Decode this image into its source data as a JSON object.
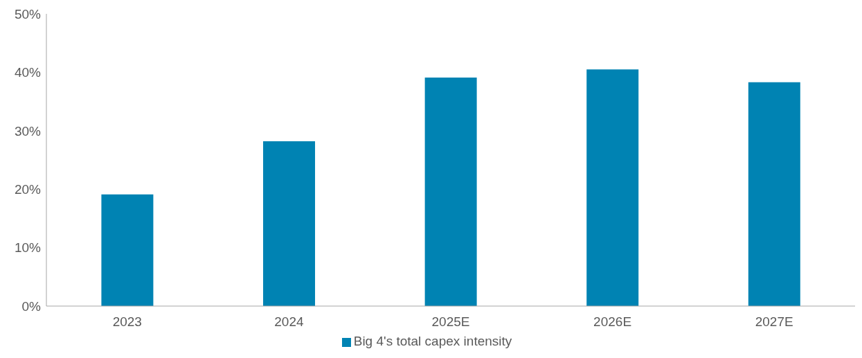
{
  "chart_data": {
    "type": "bar",
    "categories": [
      "2023",
      "2024",
      "2025E",
      "2026E",
      "2027E"
    ],
    "series": [
      {
        "name": "Big 4's total capex intensity",
        "color": "#0083b3",
        "values": [
          19.1,
          28.2,
          39.1,
          40.5,
          38.3
        ]
      }
    ],
    "ylim": [
      0,
      50
    ],
    "yticks": [
      {
        "value": 0,
        "label": "0%"
      },
      {
        "value": 10,
        "label": "10%"
      },
      {
        "value": 20,
        "label": "20%"
      },
      {
        "value": 30,
        "label": "30%"
      },
      {
        "value": 40,
        "label": "40%"
      },
      {
        "value": 50,
        "label": "50%"
      }
    ],
    "grid": false,
    "legend": "bottom"
  }
}
